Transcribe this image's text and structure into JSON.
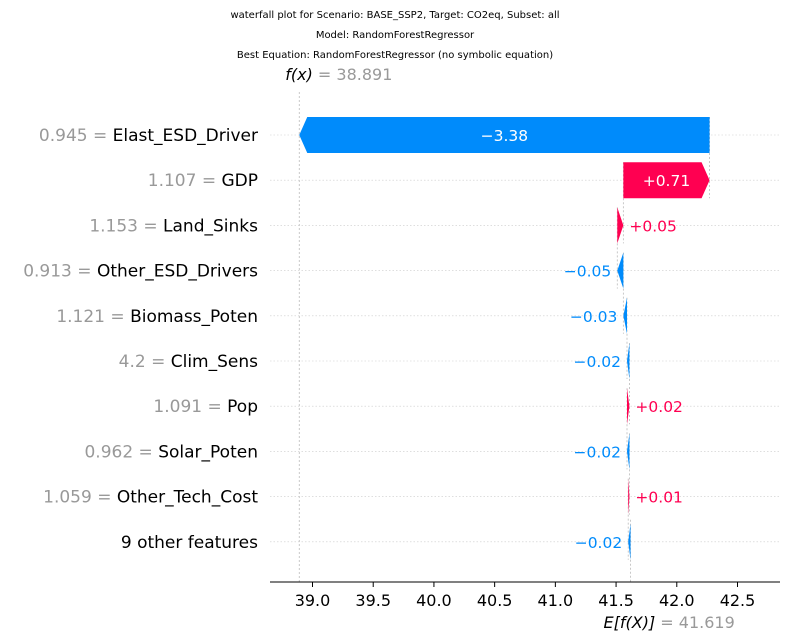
{
  "titles": [
    "waterfall plot for Scenario: BASE_SSP2, Target: CO2eq, Subset: all",
    "Model: RandomForestRegressor",
    "Best Equation: RandomForestRegressor (no symbolic equation)"
  ],
  "colors": {
    "positive": "#ff0051",
    "negative": "#008bfb",
    "value_gray": "#999999"
  },
  "chart_data": {
    "type": "waterfall",
    "base_value": 41.619,
    "base_label": "E[f(X)]",
    "base_value_text": " = 41.619",
    "output_value": 38.891,
    "output_label": "f(x)",
    "output_value_text": " = 38.891",
    "xlim": [
      38.65,
      42.85
    ],
    "xticks": [
      39.0,
      39.5,
      40.0,
      40.5,
      41.0,
      41.5,
      42.0,
      42.5
    ],
    "xtick_labels": [
      "39.0",
      "39.5",
      "40.0",
      "40.5",
      "41.0",
      "41.5",
      "42.0",
      "42.5"
    ],
    "features": [
      {
        "value": "0.945",
        "name": "Elast_ESD_Driver",
        "contribution": -3.38,
        "label": "−3.38",
        "from": 42.27,
        "to": 38.891
      },
      {
        "value": "1.107",
        "name": "GDP",
        "contribution": 0.71,
        "label": "+0.71",
        "from": 41.56,
        "to": 42.27
      },
      {
        "value": "1.153",
        "name": "Land_Sinks",
        "contribution": 0.05,
        "label": "+0.05",
        "from": 41.51,
        "to": 41.56
      },
      {
        "value": "0.913",
        "name": "Other_ESD_Drivers",
        "contribution": -0.05,
        "label": "−0.05",
        "from": 41.56,
        "to": 41.51
      },
      {
        "value": "1.121",
        "name": "Biomass_Poten",
        "contribution": -0.03,
        "label": "−0.03",
        "from": 41.59,
        "to": 41.56
      },
      {
        "value": "4.2",
        "name": "Clim_Sens",
        "contribution": -0.02,
        "label": "−0.02",
        "from": 41.61,
        "to": 41.59
      },
      {
        "value": "1.091",
        "name": "Pop",
        "contribution": 0.02,
        "label": "+0.02",
        "from": 41.59,
        "to": 41.61
      },
      {
        "value": "0.962",
        "name": "Solar_Poten",
        "contribution": -0.02,
        "label": "−0.02",
        "from": 41.61,
        "to": 41.59
      },
      {
        "value": "1.059",
        "name": "Other_Tech_Cost",
        "contribution": 0.01,
        "label": "+0.01",
        "from": 41.6,
        "to": 41.61
      },
      {
        "value": "",
        "name": "9 other features",
        "contribution": -0.02,
        "label": "−0.02",
        "from": 41.619,
        "to": 41.6
      }
    ]
  }
}
